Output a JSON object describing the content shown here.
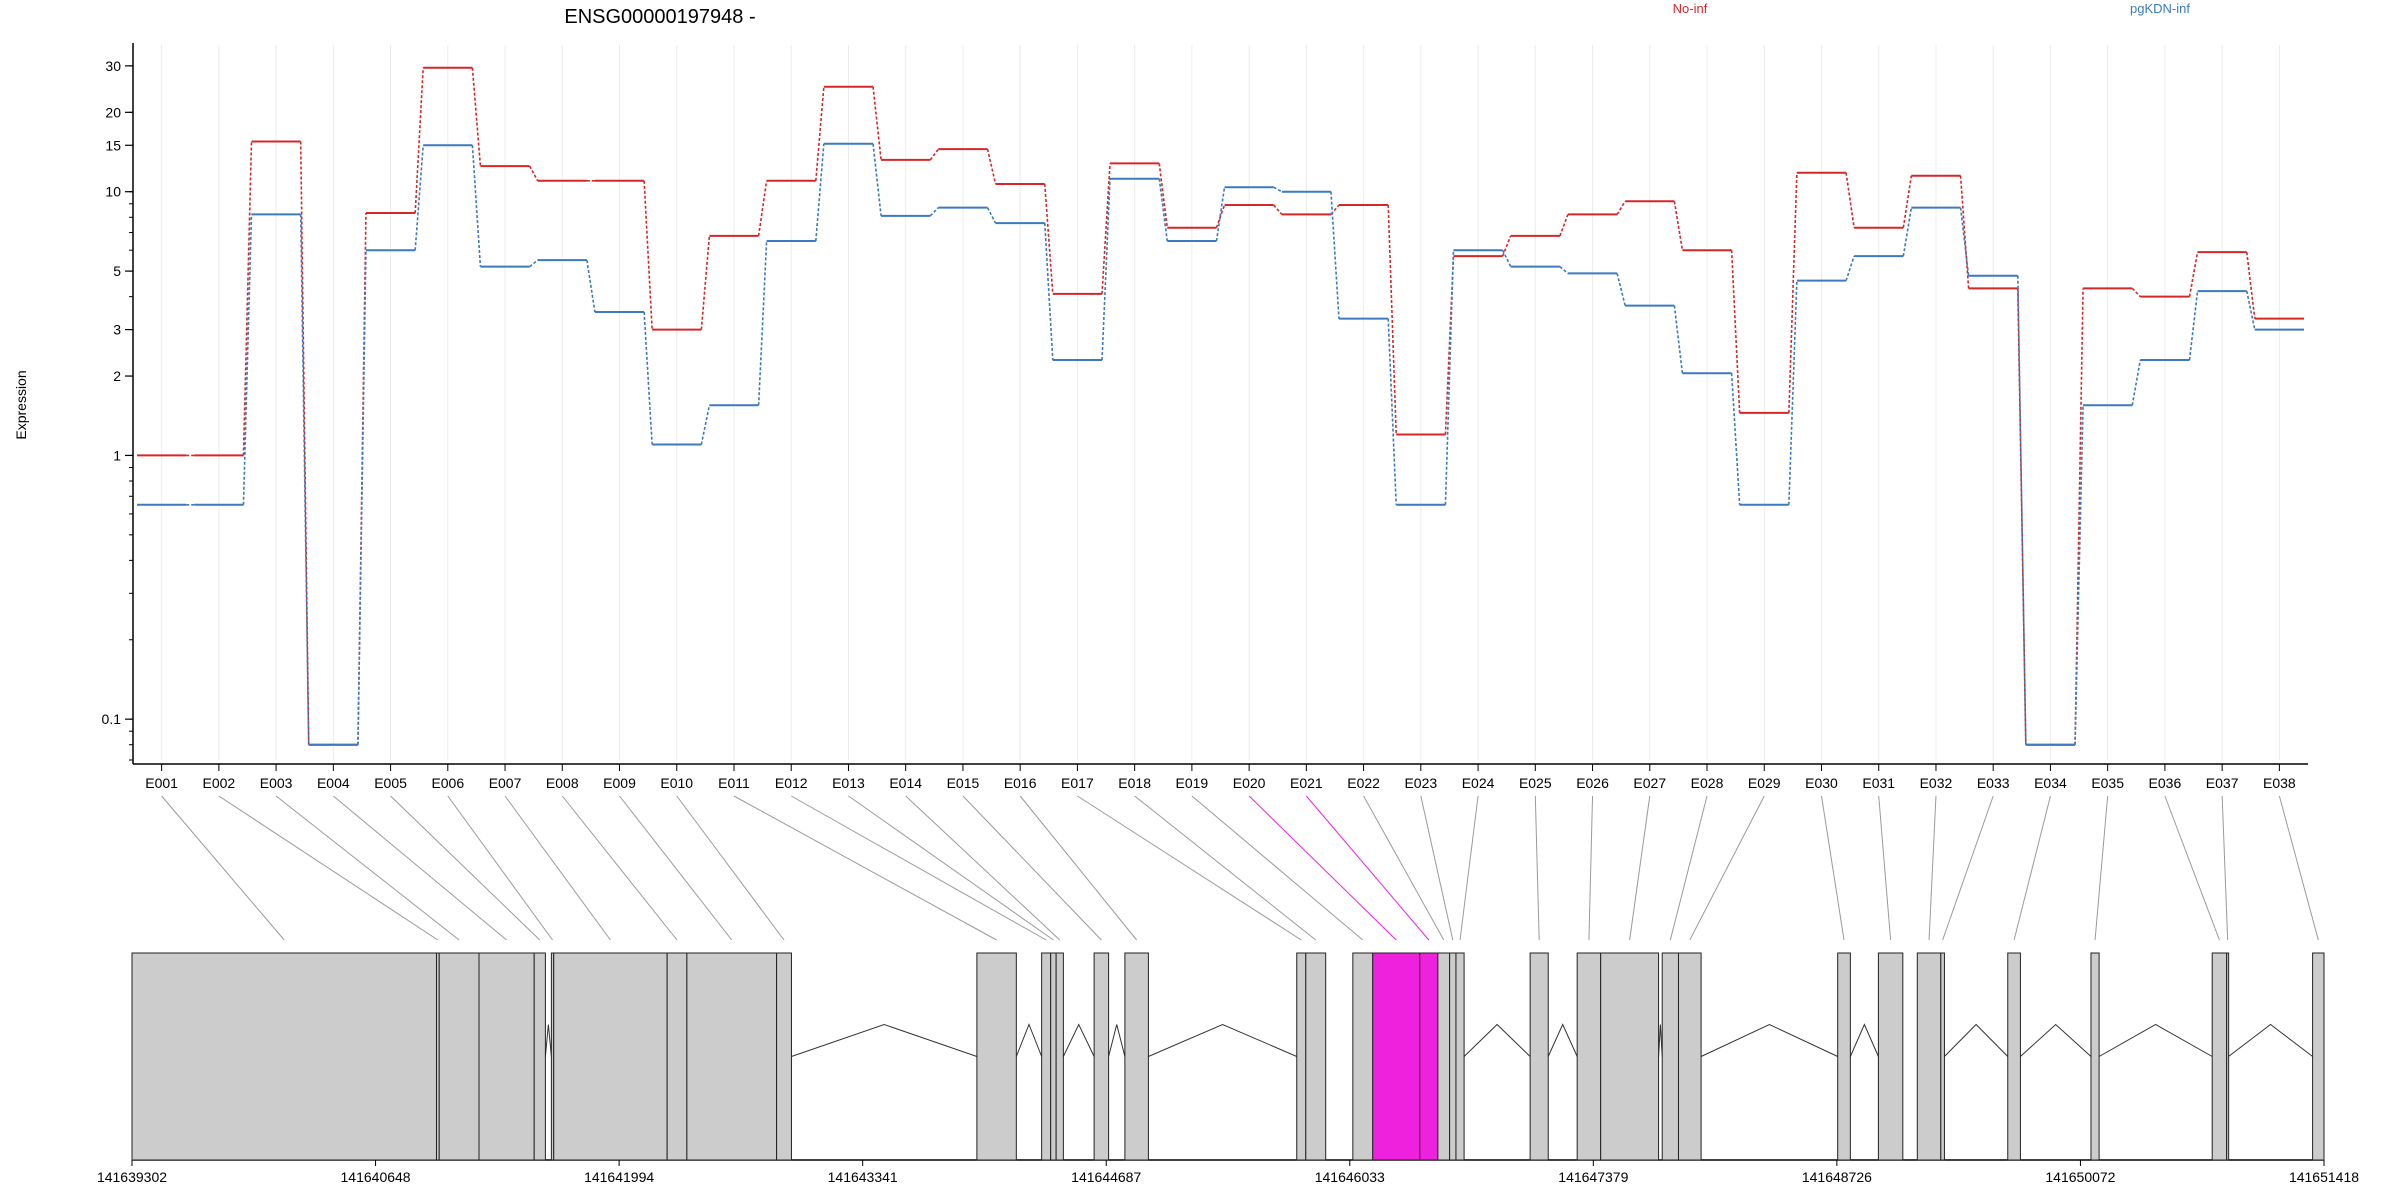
{
  "chart_data": {
    "type": "line",
    "title": "ENSG00000197948 -",
    "ylabel": "Expression",
    "xlabel": "",
    "y_scale": "log",
    "ylim": [
      0.07,
      36
    ],
    "y_ticks": [
      0.1,
      1,
      2,
      3,
      5,
      10,
      15,
      20,
      30
    ],
    "y_tick_labels": [
      "0.1",
      "1",
      "2",
      "3",
      "5",
      "10",
      "15",
      "20",
      "30"
    ],
    "grid": true,
    "legend_placement": "top",
    "categories": [
      "E001",
      "E002",
      "E003",
      "E004",
      "E005",
      "E006",
      "E007",
      "E008",
      "E009",
      "E010",
      "E011",
      "E012",
      "E013",
      "E014",
      "E015",
      "E016",
      "E017",
      "E018",
      "E019",
      "E020",
      "E021",
      "E022",
      "E023",
      "E024",
      "E025",
      "E026",
      "E027",
      "E028",
      "E029",
      "E030",
      "E031",
      "E032",
      "E033",
      "E034",
      "E035",
      "E036",
      "E037",
      "E038"
    ],
    "series": [
      {
        "name": "No-inf",
        "color": "#d62728",
        "values": [
          1.0,
          1.0,
          15.5,
          0.08,
          8.3,
          29.5,
          12.5,
          11.0,
          11.0,
          3.0,
          6.8,
          11.0,
          25.0,
          13.2,
          14.5,
          10.7,
          4.1,
          12.8,
          7.3,
          8.9,
          8.2,
          8.9,
          1.2,
          5.7,
          6.8,
          8.2,
          9.2,
          6.0,
          1.45,
          11.8,
          7.3,
          11.5,
          4.3,
          0.08,
          4.3,
          4.0,
          5.9,
          3.3
        ]
      },
      {
        "name": "pgKDN-inf",
        "color": "#3a7abd",
        "values": [
          0.65,
          0.65,
          8.2,
          0.08,
          6.0,
          15.0,
          5.2,
          5.5,
          3.5,
          1.1,
          1.55,
          6.5,
          15.2,
          8.1,
          8.7,
          7.6,
          2.3,
          11.2,
          6.5,
          10.4,
          10.0,
          3.3,
          0.65,
          6.0,
          5.2,
          4.9,
          3.7,
          2.05,
          0.65,
          4.6,
          5.7,
          8.7,
          4.8,
          0.08,
          1.55,
          2.3,
          4.2,
          3.0
        ]
      }
    ],
    "gene_model": {
      "coordinate_labels": [
        "141639302",
        "141640648",
        "141641994",
        "141643341",
        "141644687",
        "141646033",
        "141647379",
        "141648726",
        "141650072",
        "141651418"
      ],
      "coordinate_range": [
        141639302,
        141651418
      ],
      "exon_color": "#cccccc",
      "highlight_color": "#ee22dd",
      "highlighted_exons": [
        "E020",
        "E021"
      ],
      "exons": [
        [
          "E001",
          141639302,
          141640985
        ],
        [
          "E002",
          141640985,
          141641000
        ],
        [
          "E003",
          141641000,
          141641220
        ],
        [
          "E004",
          141641220,
          141641525
        ],
        [
          "E005",
          141641525,
          141641587
        ],
        [
          "E006",
          141641620,
          141641633
        ],
        [
          "E007",
          141641633,
          141642260
        ],
        [
          "E008",
          141642260,
          141642369
        ],
        [
          "E009",
          141642369,
          141642865
        ],
        [
          "E010",
          141642865,
          141642947
        ],
        [
          "E011",
          141643972,
          141644190
        ],
        [
          "E012",
          141644330,
          141644380
        ],
        [
          "E013",
          141644380,
          141644410
        ],
        [
          "E014",
          141644410,
          141644450
        ],
        [
          "E015",
          141644620,
          141644700
        ],
        [
          "E016",
          141644790,
          141644920
        ],
        [
          "E017",
          141645740,
          141645790
        ],
        [
          "E018",
          141645790,
          141645900
        ],
        [
          "E019",
          141646050,
          141646160
        ],
        [
          "E020",
          141646160,
          141646420
        ],
        [
          "E021",
          141646420,
          141646520
        ],
        [
          "E022",
          141646520,
          141646585
        ],
        [
          "E023",
          141646585,
          141646620
        ],
        [
          "E024",
          141646620,
          141646665
        ],
        [
          "E025",
          141647030,
          141647130
        ],
        [
          "E026",
          141647290,
          141647420
        ],
        [
          "E027",
          141647420,
          141647740
        ],
        [
          "E028",
          141647760,
          141647850
        ],
        [
          "E029",
          141647850,
          141647975
        ],
        [
          "E030",
          141648730,
          141648800
        ],
        [
          "E031",
          141648955,
          141649090
        ],
        [
          "E032",
          141649170,
          141649300
        ],
        [
          "E033",
          141649300,
          141649320
        ],
        [
          "E034",
          141649670,
          141649740
        ],
        [
          "E035",
          141650130,
          141650175
        ],
        [
          "E036",
          141650800,
          141650880
        ],
        [
          "E037",
          141650880,
          141650890
        ],
        [
          "E038",
          141651355,
          141651418
        ]
      ],
      "introns": [
        [
          141640985,
          141641000
        ],
        [
          141641587,
          141641620
        ],
        [
          141642947,
          141643972
        ],
        [
          141644190,
          141644330
        ],
        [
          141644450,
          141644620
        ],
        [
          141644700,
          141644790
        ],
        [
          141644920,
          141645740
        ],
        [
          141646665,
          141647030
        ],
        [
          141647130,
          141647290
        ],
        [
          141647740,
          141647760
        ],
        [
          141647975,
          141648730
        ],
        [
          141648800,
          141648955
        ],
        [
          141649320,
          141649670
        ],
        [
          141649740,
          141650130
        ],
        [
          141650175,
          141650800
        ],
        [
          141650890,
          141651355
        ]
      ]
    }
  }
}
